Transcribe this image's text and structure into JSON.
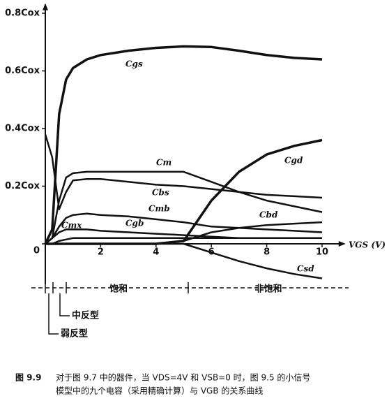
{
  "chart_data": {
    "type": "line",
    "x_label": "VGS (V)",
    "xlim": [
      0,
      10.8
    ],
    "ylim": [
      -0.14,
      0.83
    ],
    "xticks": [
      2,
      4,
      6,
      8,
      10
    ],
    "yticks": [
      {
        "value": 0,
        "label": "0"
      },
      {
        "value": 0.2,
        "label": "0.2Cox"
      },
      {
        "value": 0.4,
        "label": "0.4Cox"
      },
      {
        "value": 0.6,
        "label": "0.6Cox"
      },
      {
        "value": 0.8,
        "label": "0.8Cox"
      }
    ],
    "x": [
      0,
      0.25,
      0.5,
      0.75,
      1,
      1.5,
      2,
      3,
      4,
      5,
      6,
      7,
      8,
      9,
      10
    ],
    "series": [
      {
        "name": "Cgs",
        "color": "#111",
        "values": [
          0,
          0.05,
          0.45,
          0.57,
          0.61,
          0.64,
          0.655,
          0.67,
          0.68,
          0.685,
          0.683,
          0.67,
          0.655,
          0.645,
          0.64
        ]
      },
      {
        "name": "Cm",
        "color": "#111",
        "values": [
          0,
          0.02,
          0.15,
          0.23,
          0.245,
          0.25,
          0.25,
          0.25,
          0.25,
          0.25,
          0.215,
          0.18,
          0.15,
          0.13,
          0.11
        ]
      },
      {
        "name": "Cgd",
        "color": "#111",
        "values": [
          0,
          0,
          0,
          0,
          0,
          0,
          0,
          0,
          0,
          0.01,
          0.15,
          0.25,
          0.31,
          0.34,
          0.36
        ]
      },
      {
        "name": "Cbs",
        "color": "#111",
        "values": [
          0.38,
          0.3,
          0.12,
          0.18,
          0.22,
          0.225,
          0.225,
          0.215,
          0.205,
          0.2,
          0.19,
          0.18,
          0.17,
          0.165,
          0.16
        ]
      },
      {
        "name": "Cmb",
        "color": "#111",
        "values": [
          0,
          0.02,
          0.06,
          0.09,
          0.1,
          0.105,
          0.1,
          0.095,
          0.085,
          0.075,
          0.06,
          0.055,
          0.05,
          0.045,
          0.04
        ]
      },
      {
        "name": "Cgb",
        "color": "#111",
        "values": [
          0,
          0.02,
          0.04,
          0.05,
          0.05,
          0.05,
          0.045,
          0.04,
          0.035,
          0.03,
          0.025,
          0.02,
          0.02,
          0.02,
          0.02
        ]
      },
      {
        "name": "Cmx",
        "color": "#111",
        "values": [
          0,
          0,
          0.01,
          0.015,
          0.02,
          0.02,
          0.02,
          0.02,
          0.02,
          0.02,
          0.02,
          0.02,
          0.02,
          0.02,
          0.02
        ]
      },
      {
        "name": "Cbd",
        "color": "#111",
        "values": [
          0,
          0,
          0,
          0,
          0,
          0,
          0,
          0,
          0,
          0.01,
          0.04,
          0.055,
          0.065,
          0.07,
          0.075
        ]
      },
      {
        "name": "Csd",
        "color": "#111",
        "values": [
          0,
          0,
          0,
          0,
          0,
          0,
          0,
          0,
          0,
          0,
          -0.03,
          -0.06,
          -0.085,
          -0.105,
          -0.12
        ]
      }
    ],
    "regions": [
      "饱和",
      "非饱和",
      "中反型",
      "弱反型"
    ],
    "figure_number": "图 9.9",
    "caption": [
      "对于图 9.7 中的器件，当 VDS=4V 和 VSB=0 时，图 9.5 的小信号",
      "模型中的九个电容（采用精确计算）与 VGB 的关系曲线"
    ]
  }
}
